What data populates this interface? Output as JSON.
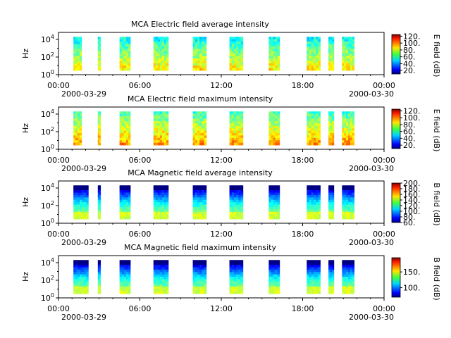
{
  "chart_data": [
    {
      "type": "heatmap",
      "title": "MCA  Electric field average intensity",
      "ylabel": "Hz",
      "ytick_labels": [
        "10^0",
        "10^2",
        "10^4"
      ],
      "xtick_labels": [
        "00:00",
        "06:00",
        "12:00",
        "18:00",
        "00:00"
      ],
      "xtick_hours": [
        0,
        6,
        12,
        18,
        24
      ],
      "date_labels": [
        "2000-03-29",
        "2000-03-30"
      ],
      "colorbar": {
        "label": "E field (dB)",
        "ticks": [
          20,
          40,
          60,
          80,
          100,
          120
        ],
        "tick_labels": [
          "20.",
          "40.",
          "60.",
          "80.",
          "100.",
          "120."
        ],
        "range": [
          10,
          125
        ]
      },
      "field": "E",
      "stat": "average",
      "data_intervals_hours": [
        [
          1.1,
          1.7
        ],
        [
          2.9,
          3.1
        ],
        [
          4.5,
          5.3
        ],
        [
          7.0,
          8.1
        ],
        [
          9.9,
          10.9
        ],
        [
          12.6,
          13.6
        ],
        [
          15.5,
          16.3
        ],
        [
          18.3,
          19.3
        ],
        [
          19.9,
          20.3
        ],
        [
          20.9,
          21.8
        ]
      ],
      "freq_range_hz": [
        3,
        20000
      ]
    },
    {
      "type": "heatmap",
      "title": "MCA  Electric field maximum intensity",
      "ylabel": "Hz",
      "ytick_labels": [
        "10^0",
        "10^2",
        "10^4"
      ],
      "xtick_labels": [
        "00:00",
        "06:00",
        "12:00",
        "18:00",
        "00:00"
      ],
      "xtick_hours": [
        0,
        6,
        12,
        18,
        24
      ],
      "date_labels": [
        "2000-03-29",
        "2000-03-30"
      ],
      "colorbar": {
        "label": "E field (dB)",
        "ticks": [
          20,
          40,
          60,
          80,
          100,
          120
        ],
        "tick_labels": [
          "20.",
          "40.",
          "60.",
          "80.",
          "100.",
          "120."
        ],
        "range": [
          10,
          125
        ]
      },
      "field": "E",
      "stat": "maximum",
      "data_intervals_hours": [
        [
          1.1,
          1.7
        ],
        [
          2.9,
          3.1
        ],
        [
          4.5,
          5.3
        ],
        [
          7.0,
          8.1
        ],
        [
          9.9,
          10.9
        ],
        [
          12.6,
          13.6
        ],
        [
          15.5,
          16.3
        ],
        [
          18.3,
          19.3
        ],
        [
          19.9,
          20.3
        ],
        [
          20.9,
          21.8
        ]
      ],
      "freq_range_hz": [
        3,
        20000
      ]
    },
    {
      "type": "heatmap",
      "title": "MCA  Magnetic field average intensity",
      "ylabel": "Hz",
      "ytick_labels": [
        "10^0",
        "10^2",
        "10^4"
      ],
      "xtick_labels": [
        "00:00",
        "06:00",
        "12:00",
        "18:00",
        "00:00"
      ],
      "xtick_hours": [
        0,
        6,
        12,
        18,
        24
      ],
      "date_labels": [
        "2000-03-29",
        "2000-03-30"
      ],
      "colorbar": {
        "label": "B field (dB)",
        "ticks": [
          60,
          80,
          100,
          120,
          140,
          160,
          180,
          200
        ],
        "tick_labels": [
          "60.",
          "80.",
          "100.",
          "120.",
          "140.",
          "160.",
          "180.",
          "200."
        ],
        "range": [
          60,
          200
        ]
      },
      "field": "B",
      "stat": "average",
      "data_intervals_hours": [
        [
          1.1,
          2.2
        ],
        [
          2.9,
          3.1
        ],
        [
          4.5,
          5.3
        ],
        [
          7.0,
          8.1
        ],
        [
          9.9,
          10.9
        ],
        [
          12.6,
          13.6
        ],
        [
          15.5,
          16.3
        ],
        [
          18.3,
          19.3
        ],
        [
          19.9,
          20.3
        ],
        [
          20.9,
          21.8
        ]
      ],
      "freq_range_hz": [
        3,
        20000
      ]
    },
    {
      "type": "heatmap",
      "title": "MCA  Magnetic field maximum intensity",
      "ylabel": "Hz",
      "ytick_labels": [
        "10^0",
        "10^2",
        "10^4"
      ],
      "xtick_labels": [
        "00:00",
        "06:00",
        "12:00",
        "18:00",
        "00:00"
      ],
      "xtick_hours": [
        0,
        6,
        12,
        18,
        24
      ],
      "date_labels": [
        "2000-03-29",
        "2000-03-30"
      ],
      "colorbar": {
        "label": "B field (dB)",
        "ticks": [
          100,
          150
        ],
        "tick_labels": [
          "100.",
          "150."
        ],
        "range": [
          70,
          195
        ]
      },
      "field": "B",
      "stat": "maximum",
      "data_intervals_hours": [
        [
          1.1,
          2.2
        ],
        [
          2.9,
          3.1
        ],
        [
          4.5,
          5.3
        ],
        [
          7.0,
          8.1
        ],
        [
          9.9,
          10.9
        ],
        [
          12.6,
          13.6
        ],
        [
          15.5,
          16.3
        ],
        [
          18.3,
          19.3
        ],
        [
          19.9,
          20.3
        ],
        [
          20.9,
          21.8
        ]
      ],
      "freq_range_hz": [
        3,
        20000
      ]
    }
  ]
}
